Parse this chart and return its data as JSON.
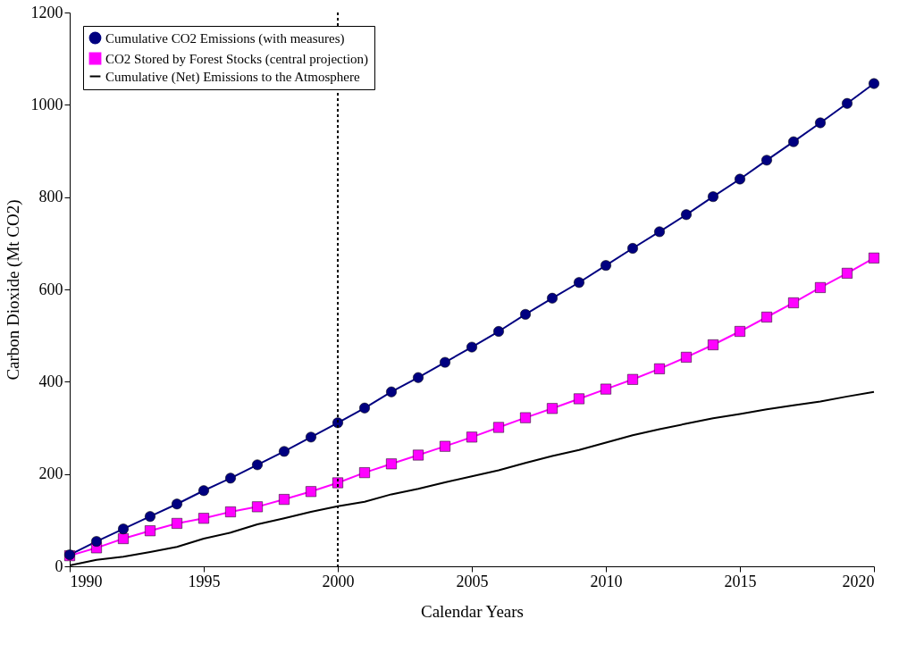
{
  "chart_data": {
    "type": "line",
    "xlabel": "Calendar Years",
    "ylabel": "Carbon Dioxide (Mt CO2)",
    "x": [
      1990,
      1991,
      1992,
      1993,
      1994,
      1995,
      1996,
      1997,
      1998,
      1999,
      2000,
      2001,
      2002,
      2003,
      2004,
      2005,
      2006,
      2007,
      2008,
      2009,
      2010,
      2011,
      2012,
      2013,
      2014,
      2015,
      2016,
      2017,
      2018,
      2019,
      2020
    ],
    "series": [
      {
        "name": "Cumulative CO2  Emissions (with measures)",
        "color": "#000080",
        "marker": "circle",
        "values": [
          25,
          54,
          81,
          108,
          135,
          164,
          191,
          220,
          249,
          280,
          311,
          343,
          378,
          409,
          442,
          475,
          509,
          546,
          581,
          615,
          652,
          689,
          725,
          762,
          801,
          839,
          880,
          920,
          961,
          1003,
          1046
        ]
      },
      {
        "name": "CO2 Stored by Forest Stocks (central projection)",
        "color": "#ff00ff",
        "marker": "square",
        "values": [
          23,
          40,
          60,
          77,
          93,
          104,
          118,
          129,
          145,
          162,
          181,
          203,
          222,
          241,
          260,
          280,
          301,
          322,
          342,
          363,
          384,
          405,
          428,
          453,
          480,
          509,
          540,
          571,
          604,
          635,
          668
        ]
      },
      {
        "name": "Cumulative (Net)  Emissions to the Atmosphere",
        "color": "#000000",
        "marker": "none",
        "values": [
          2,
          14,
          21,
          31,
          42,
          60,
          73,
          91,
          104,
          118,
          130,
          140,
          156,
          168,
          182,
          195,
          208,
          224,
          239,
          252,
          268,
          284,
          297,
          309,
          321,
          330,
          340,
          349,
          357,
          368,
          378
        ]
      }
    ],
    "xlim": [
      1990,
      2020
    ],
    "xticks": [
      1990,
      1995,
      2000,
      2005,
      2010,
      2015,
      2020
    ],
    "ylim": [
      0,
      1200
    ],
    "yticks": [
      0,
      200,
      400,
      600,
      800,
      1000,
      1200
    ],
    "ref_lines": [
      {
        "axis": "x",
        "value": 2000,
        "line_style": "dotted",
        "color": "#000000"
      }
    ],
    "grid": false,
    "legend": "top left"
  }
}
